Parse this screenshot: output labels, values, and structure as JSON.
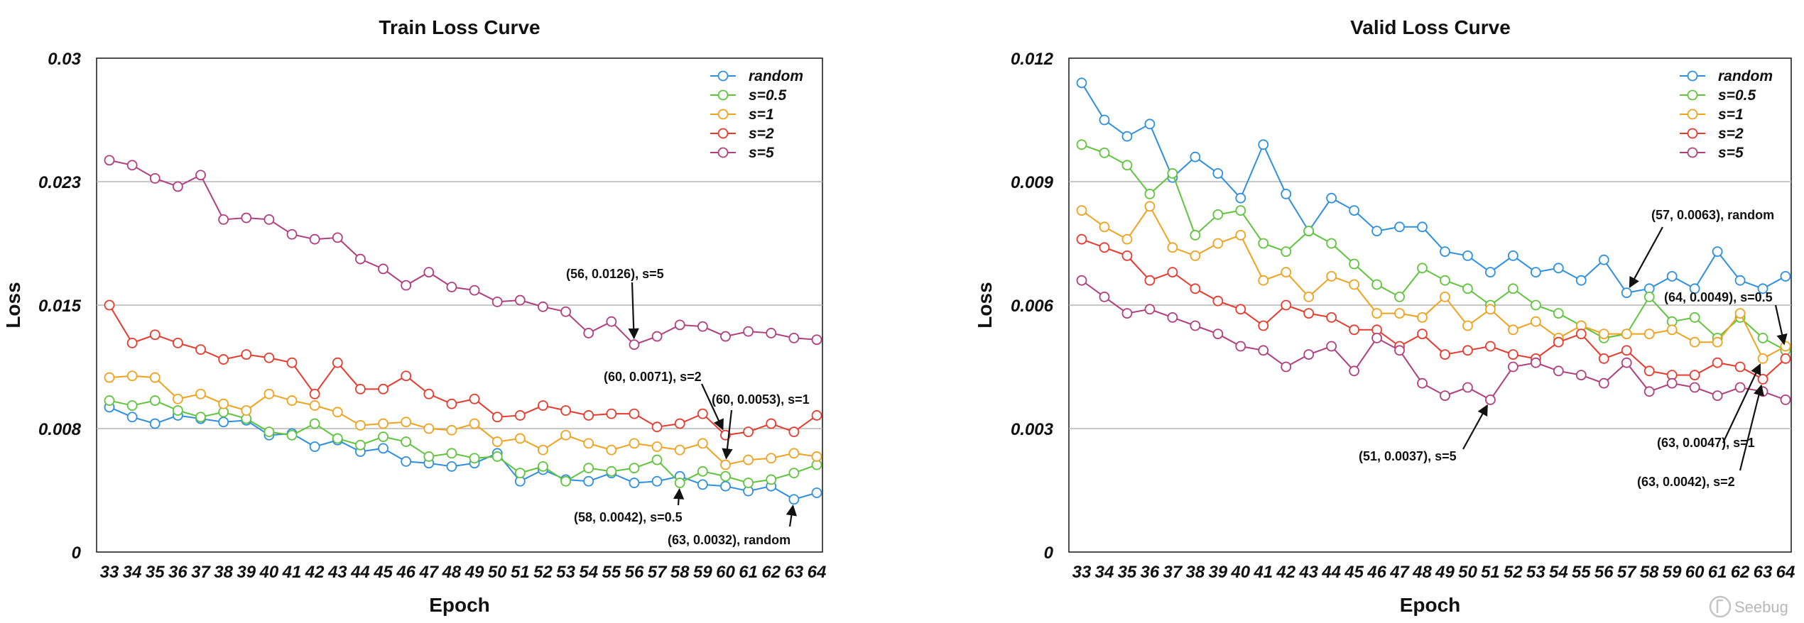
{
  "watermark": "Seebug",
  "chart_data": [
    {
      "type": "line",
      "title": "Train Loss Curve",
      "xlabel": "Epoch",
      "ylabel": "Loss",
      "x": [
        33,
        34,
        35,
        36,
        37,
        38,
        39,
        40,
        41,
        42,
        43,
        44,
        45,
        46,
        47,
        48,
        49,
        50,
        51,
        52,
        53,
        54,
        55,
        56,
        57,
        58,
        59,
        60,
        61,
        62,
        63,
        64
      ],
      "ylim": [
        0,
        0.03
      ],
      "yticks": [
        0,
        0.0075,
        0.015,
        0.0225,
        0.03
      ],
      "ytick_labels": [
        "0",
        "0.008",
        "0.015",
        "0.023",
        "0.03"
      ],
      "grid": true,
      "legend": "top-right",
      "series": [
        {
          "name": "random",
          "color": "#2e8fe0",
          "values": [
            0.0088,
            0.0082,
            0.0078,
            0.0083,
            0.0081,
            0.0079,
            0.008,
            0.0071,
            0.0072,
            0.0064,
            0.0068,
            0.0061,
            0.0063,
            0.0055,
            0.0054,
            0.0052,
            0.0054,
            0.006,
            0.0043,
            0.005,
            0.0044,
            0.0043,
            0.0048,
            0.0042,
            0.0043,
            0.0046,
            0.0041,
            0.004,
            0.0037,
            0.004,
            0.0032,
            0.0036
          ]
        },
        {
          "name": "s=0.5",
          "color": "#5fc43c",
          "values": [
            0.0092,
            0.0089,
            0.0092,
            0.0086,
            0.0082,
            0.0085,
            0.0081,
            0.0073,
            0.0071,
            0.0078,
            0.0069,
            0.0065,
            0.007,
            0.0067,
            0.0058,
            0.006,
            0.0057,
            0.0058,
            0.0048,
            0.0052,
            0.0043,
            0.0051,
            0.0049,
            0.0051,
            0.0056,
            0.0042,
            0.0049,
            0.0046,
            0.0042,
            0.0044,
            0.0048,
            0.0053
          ]
        },
        {
          "name": "s=1",
          "color": "#f0a21e",
          "values": [
            0.0106,
            0.0107,
            0.0106,
            0.0093,
            0.0096,
            0.009,
            0.0086,
            0.0096,
            0.0092,
            0.0089,
            0.0085,
            0.0077,
            0.0078,
            0.0079,
            0.0075,
            0.0074,
            0.0078,
            0.0067,
            0.0069,
            0.0062,
            0.0071,
            0.0066,
            0.0062,
            0.0066,
            0.0064,
            0.0062,
            0.0066,
            0.0053,
            0.0056,
            0.0057,
            0.006,
            0.0058
          ]
        },
        {
          "name": "s=2",
          "color": "#e83a2c",
          "values": [
            0.015,
            0.0127,
            0.0132,
            0.0127,
            0.0123,
            0.0117,
            0.012,
            0.0118,
            0.0115,
            0.0096,
            0.0115,
            0.0099,
            0.0099,
            0.0107,
            0.0096,
            0.009,
            0.0093,
            0.0082,
            0.0083,
            0.0089,
            0.0086,
            0.0083,
            0.0084,
            0.0084,
            0.0076,
            0.0078,
            0.0084,
            0.0071,
            0.0073,
            0.0078,
            0.0073,
            0.0083
          ]
        },
        {
          "name": "s=5",
          "color": "#b03e7e",
          "values": [
            0.0238,
            0.0235,
            0.0227,
            0.0222,
            0.0229,
            0.0202,
            0.0203,
            0.0202,
            0.0193,
            0.019,
            0.0191,
            0.0178,
            0.0172,
            0.0162,
            0.017,
            0.0161,
            0.0159,
            0.0152,
            0.0153,
            0.0149,
            0.0146,
            0.0133,
            0.014,
            0.0126,
            0.0131,
            0.0138,
            0.0137,
            0.0131,
            0.0134,
            0.0133,
            0.013,
            0.0129
          ]
        }
      ],
      "annotations": [
        {
          "text": "(56, 0.0126), s=5",
          "series": "s=5",
          "x": 56,
          "y": 0.0126
        },
        {
          "text": "(60, 0.0071), s=2",
          "series": "s=2",
          "x": 60,
          "y": 0.0071
        },
        {
          "text": "(60, 0.0053), s=1",
          "series": "s=1",
          "x": 60,
          "y": 0.0053
        },
        {
          "text": "(58, 0.0042), s=0.5",
          "series": "s=0.5",
          "x": 58,
          "y": 0.0042
        },
        {
          "text": "(63, 0.0032), random",
          "series": "random",
          "x": 63,
          "y": 0.0032
        }
      ]
    },
    {
      "type": "line",
      "title": "Valid Loss Curve",
      "xlabel": "Epoch",
      "ylabel": "Loss",
      "x": [
        33,
        34,
        35,
        36,
        37,
        38,
        39,
        40,
        41,
        42,
        43,
        44,
        45,
        46,
        47,
        48,
        49,
        50,
        51,
        52,
        53,
        54,
        55,
        56,
        57,
        58,
        59,
        60,
        61,
        62,
        63,
        64
      ],
      "ylim": [
        0,
        0.012
      ],
      "yticks": [
        0,
        0.003,
        0.006,
        0.009,
        0.012
      ],
      "ytick_labels": [
        "0",
        "0.003",
        "0.006",
        "0.009",
        "0.012"
      ],
      "grid": true,
      "legend": "top-right",
      "series": [
        {
          "name": "random",
          "color": "#2e8fe0",
          "values": [
            0.0114,
            0.0105,
            0.0101,
            0.0104,
            0.0091,
            0.0096,
            0.0092,
            0.0086,
            0.0099,
            0.0087,
            0.0078,
            0.0086,
            0.0083,
            0.0078,
            0.0079,
            0.0079,
            0.0073,
            0.0072,
            0.0068,
            0.0072,
            0.0068,
            0.0069,
            0.0066,
            0.0071,
            0.0063,
            0.0064,
            0.0067,
            0.0064,
            0.0073,
            0.0066,
            0.0064,
            0.0067
          ]
        },
        {
          "name": "s=0.5",
          "color": "#5fc43c",
          "values": [
            0.0099,
            0.0097,
            0.0094,
            0.0087,
            0.0092,
            0.0077,
            0.0082,
            0.0083,
            0.0075,
            0.0073,
            0.0078,
            0.0075,
            0.007,
            0.0065,
            0.0062,
            0.0069,
            0.0066,
            0.0064,
            0.006,
            0.0064,
            0.006,
            0.0058,
            0.0055,
            0.0052,
            0.0053,
            0.0062,
            0.0056,
            0.0057,
            0.0052,
            0.0057,
            0.0052,
            0.0049
          ]
        },
        {
          "name": "s=1",
          "color": "#f0a21e",
          "values": [
            0.0083,
            0.0079,
            0.0076,
            0.0084,
            0.0074,
            0.0072,
            0.0075,
            0.0077,
            0.0066,
            0.0068,
            0.0062,
            0.0067,
            0.0065,
            0.0058,
            0.0058,
            0.0057,
            0.0062,
            0.0055,
            0.0059,
            0.0054,
            0.0056,
            0.0052,
            0.0055,
            0.0053,
            0.0053,
            0.0053,
            0.0054,
            0.0051,
            0.0051,
            0.0058,
            0.0047,
            0.005
          ]
        },
        {
          "name": "s=2",
          "color": "#e83a2c",
          "values": [
            0.0076,
            0.0074,
            0.0072,
            0.0066,
            0.0068,
            0.0064,
            0.0061,
            0.0059,
            0.0055,
            0.006,
            0.0058,
            0.0057,
            0.0054,
            0.0054,
            0.005,
            0.0053,
            0.0048,
            0.0049,
            0.005,
            0.0048,
            0.0047,
            0.0051,
            0.0053,
            0.0047,
            0.0049,
            0.0044,
            0.0043,
            0.0043,
            0.0046,
            0.0045,
            0.0042,
            0.0047
          ]
        },
        {
          "name": "s=5",
          "color": "#b03e7e",
          "values": [
            0.0066,
            0.0062,
            0.0058,
            0.0059,
            0.0057,
            0.0055,
            0.0053,
            0.005,
            0.0049,
            0.0045,
            0.0048,
            0.005,
            0.0044,
            0.0052,
            0.0049,
            0.0041,
            0.0038,
            0.004,
            0.0037,
            0.0045,
            0.0046,
            0.0044,
            0.0043,
            0.0041,
            0.0046,
            0.0039,
            0.0041,
            0.004,
            0.0038,
            0.004,
            0.0039,
            0.0037
          ]
        }
      ],
      "annotations": [
        {
          "text": "(57, 0.0063), random",
          "series": "random",
          "x": 57,
          "y": 0.0063
        },
        {
          "text": "(64, 0.0049), s=0.5",
          "series": "s=0.5",
          "x": 64,
          "y": 0.0049
        },
        {
          "text": "(51, 0.0037), s=5",
          "series": "s=5",
          "x": 51,
          "y": 0.0037
        },
        {
          "text": "(63, 0.0047), s=1",
          "series": "s=1",
          "x": 63,
          "y": 0.0047
        },
        {
          "text": "(63, 0.0042), s=2",
          "series": "s=2",
          "x": 63,
          "y": 0.0042
        }
      ]
    }
  ]
}
